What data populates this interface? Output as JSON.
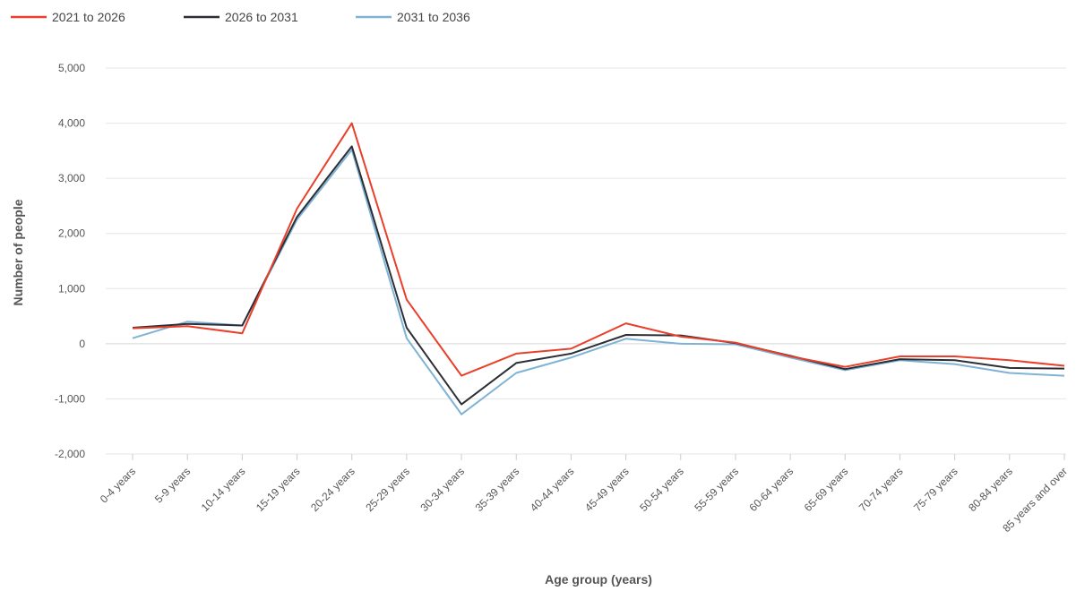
{
  "chart_data": {
    "type": "line",
    "xlabel": "Age group (years)",
    "ylabel": "Number of people",
    "ylim": [
      -2000,
      5000
    ],
    "yticks": [
      -2000,
      -1000,
      0,
      1000,
      2000,
      3000,
      4000,
      5000
    ],
    "ytick_labels": [
      "-2,000",
      "-1,000",
      "0",
      "1,000",
      "2,000",
      "3,000",
      "4,000",
      "5,000"
    ],
    "grid": true,
    "legend_position": "top-left",
    "categories": [
      "0-4 years",
      "5-9 years",
      "10-14 years",
      "15-19 years",
      "20-24 years",
      "25-29 years",
      "30-34 years",
      "35-39 years",
      "40-44 years",
      "45-49 years",
      "50-54 years",
      "55-59 years",
      "60-64 years",
      "65-69 years",
      "70-74 years",
      "75-79 years",
      "80-84 years",
      "85 years and over"
    ],
    "series": [
      {
        "name": "2021 to 2026",
        "color": "#e8402a",
        "values": [
          280,
          320,
          190,
          2450,
          4000,
          800,
          -580,
          -180,
          -90,
          370,
          130,
          20,
          -230,
          -420,
          -230,
          -230,
          -300,
          -400
        ]
      },
      {
        "name": "2026 to 2031",
        "color": "#2b2f35",
        "values": [
          290,
          360,
          330,
          2300,
          3580,
          290,
          -1100,
          -350,
          -180,
          160,
          150,
          10,
          -220,
          -460,
          -280,
          -300,
          -440,
          -450
        ]
      },
      {
        "name": "2031 to 2036",
        "color": "#7fb3d5",
        "values": [
          100,
          400,
          330,
          2250,
          3520,
          100,
          -1280,
          -530,
          -250,
          90,
          0,
          -10,
          -250,
          -480,
          -300,
          -370,
          -530,
          -580
        ]
      }
    ]
  }
}
